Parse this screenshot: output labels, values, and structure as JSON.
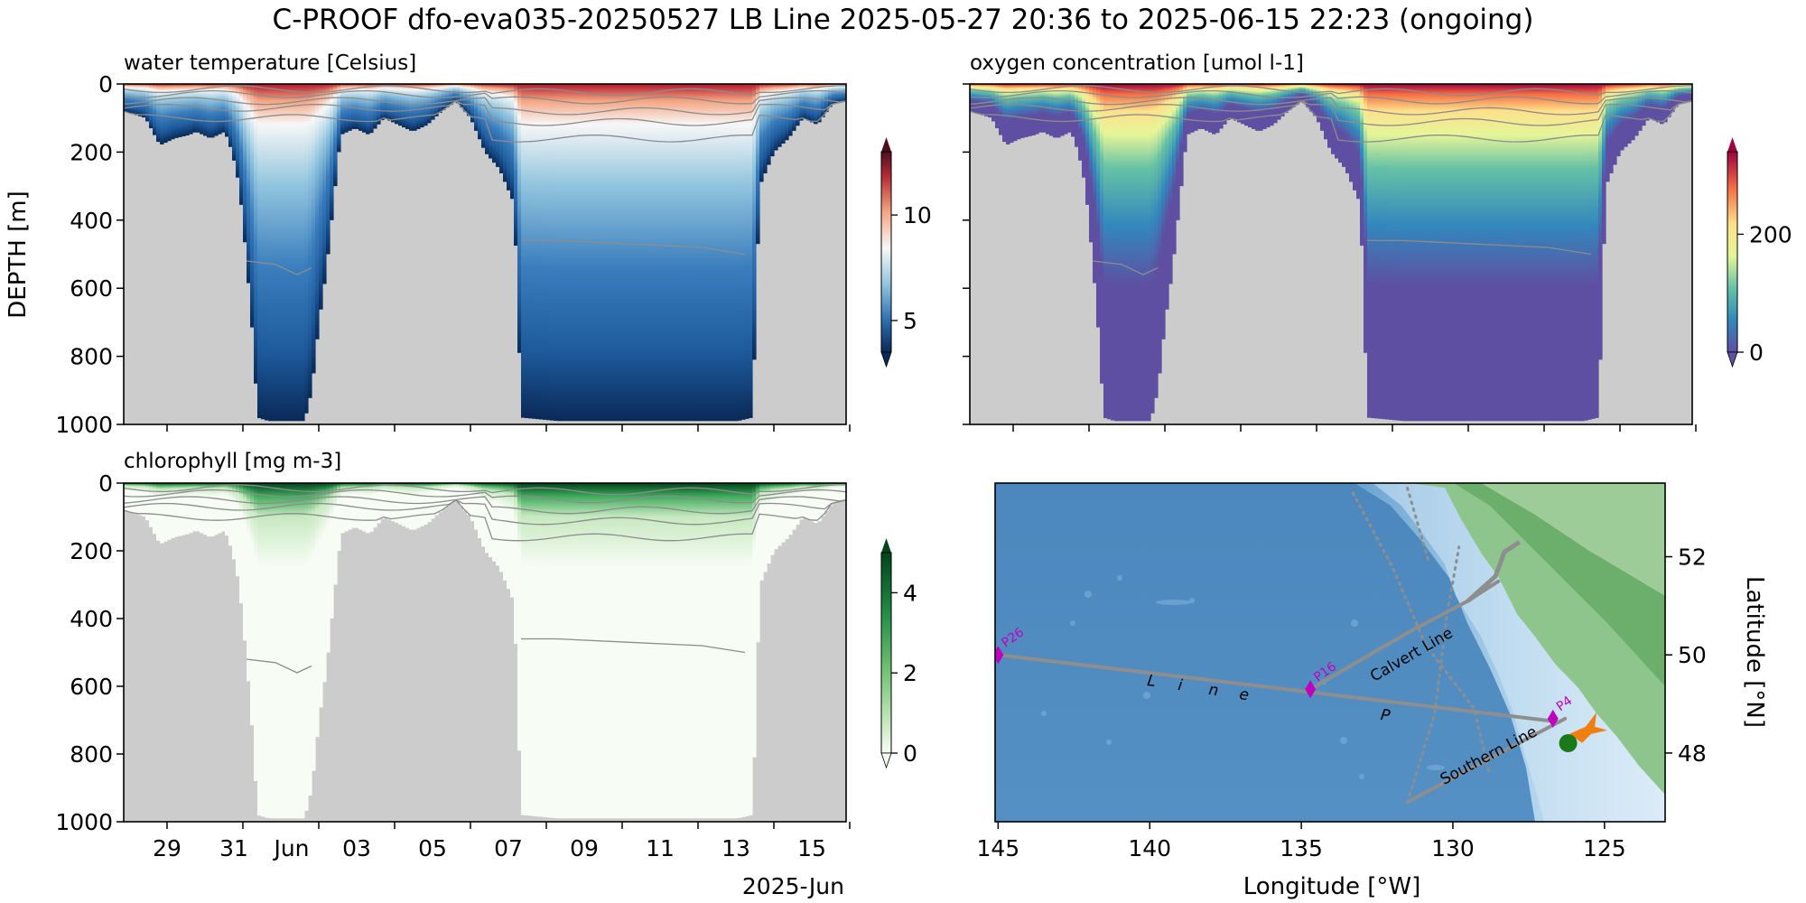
{
  "figure": {
    "title": "C-PROOF dfo-eva035-20250527   LB Line   2025-05-27 20:36 to 2025-06-15 22:23 (ongoing)"
  },
  "colors": {
    "no_data": "#cccccc",
    "contour": "#8c8c8c",
    "track": "#8e8e8e",
    "station": "#c000c0",
    "glider": "#f07f10",
    "deploy": "#1a7a1a"
  },
  "chart_data": [
    {
      "id": "temperature",
      "type": "heatmap",
      "title": "water temperature [Celsius]",
      "xlabel": "",
      "ylabel": "DEPTH [m]",
      "x_ticks": [
        "29",
        "31",
        "Jun",
        "03",
        "05",
        "07",
        "09",
        "11",
        "13",
        "15"
      ],
      "x_offset_label": "2025-Jun",
      "y_ticks": [
        "0",
        "200",
        "400",
        "600",
        "800",
        "1000"
      ],
      "ylim": [
        1000,
        0
      ],
      "colormap": "RdBu_r",
      "colorbar": {
        "ticks": [
          "5",
          "10"
        ],
        "range": [
          3.5,
          13
        ]
      }
    },
    {
      "id": "oxygen",
      "type": "heatmap",
      "title": "oxygen concentration [umol l-1]",
      "ylim": [
        1000,
        0
      ],
      "colormap": "Spectral_r",
      "colorbar": {
        "ticks": [
          "0",
          "200"
        ],
        "range": [
          0,
          340
        ]
      }
    },
    {
      "id": "chlorophyll",
      "type": "heatmap",
      "title": "chlorophyll [mg m-3]",
      "xlabel": "",
      "x_ticks": [
        "29",
        "31",
        "Jun",
        "03",
        "05",
        "07",
        "09",
        "11",
        "13",
        "15"
      ],
      "x_offset_label": "2025-Jun",
      "y_ticks": [
        "0",
        "200",
        "400",
        "600",
        "800",
        "1000"
      ],
      "ylim": [
        1000,
        0
      ],
      "colormap": "Greens",
      "colorbar": {
        "ticks": [
          "0",
          "2",
          "4"
        ],
        "range": [
          0,
          5
        ]
      }
    },
    {
      "id": "map",
      "type": "scatter",
      "xlabel": "Longitude [°W]",
      "ylabel": "Latitude [°N]",
      "x_ticks": [
        "145",
        "140",
        "135",
        "130",
        "125"
      ],
      "y_ticks": [
        "52",
        "50",
        "48"
      ],
      "xlim": [
        -145.1,
        -123
      ],
      "ylim": [
        46.6,
        53.5
      ],
      "labels": {
        "line_p": "Line P",
        "calvert": "Calvert Line",
        "southern": "Southern Line"
      },
      "stations": [
        {
          "name": "P26",
          "lon": -145.0,
          "lat": 50.0
        },
        {
          "name": "P16",
          "lon": -134.7,
          "lat": 49.3
        },
        {
          "name": "P4",
          "lon": -126.7,
          "lat": 48.7
        }
      ],
      "lines": [
        {
          "name": "Line P",
          "points": [
            [
              -145.0,
              50.0
            ],
            [
              -126.7,
              48.65
            ]
          ]
        },
        {
          "name": "Calvert Line",
          "points": [
            [
              -134.7,
              49.3
            ],
            [
              -131.5,
              50.45
            ],
            [
              -129.5,
              51.1
            ],
            [
              -128.5,
              51.5
            ]
          ]
        },
        {
          "name": "Southern Line",
          "points": [
            [
              -131.5,
              47.0
            ],
            [
              -126.3,
              48.7
            ]
          ]
        }
      ],
      "deployment": {
        "lon": -126.2,
        "lat": 48.2
      },
      "glider": {
        "lon": -125.5,
        "lat": 48.5
      }
    }
  ]
}
